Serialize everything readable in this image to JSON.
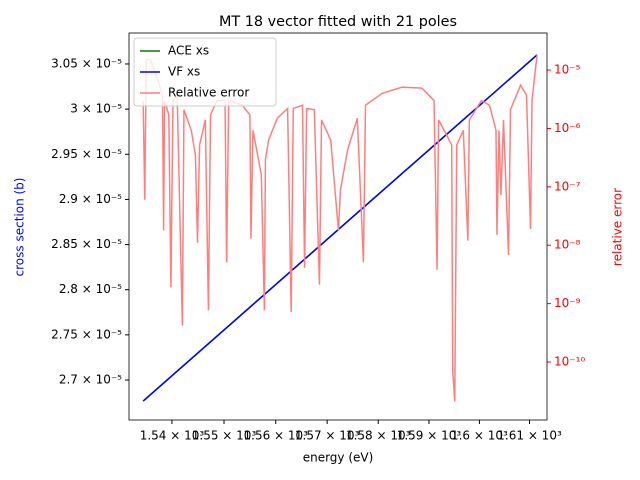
{
  "chart_data": {
    "type": "line",
    "title": "MT 18 vector fitted with 21 poles",
    "xlabel": "energy (eV)",
    "ylabel": "cross section (b)",
    "y2label": "relative error",
    "xscale": "log",
    "y2scale": "log",
    "legend": "upper left",
    "xlim": [
      1531.8,
      1613.5
    ],
    "ylim": [
      2.6557e-05,
      3.0843e-05
    ],
    "y2lim": [
      1.016e-11,
      4.31e-05
    ],
    "xticks": [
      {
        "value": 1540,
        "label": "1.54 × 10³"
      },
      {
        "value": 1550,
        "label": "1.55 × 10³"
      },
      {
        "value": 1560,
        "label": "1.56 × 10³"
      },
      {
        "value": 1570,
        "label": "1.57 × 10³"
      },
      {
        "value": 1580,
        "label": "1.58 × 10³"
      },
      {
        "value": 1590,
        "label": "1.59 × 10³"
      },
      {
        "value": 1600,
        "label": "1.6 × 10³"
      },
      {
        "value": 1610,
        "label": "1.61 × 10³"
      }
    ],
    "yticks": [
      {
        "value": 2.7e-05,
        "label": "2.7 × 10⁻⁵"
      },
      {
        "value": 2.75e-05,
        "label": "2.75 × 10⁻⁵"
      },
      {
        "value": 2.8e-05,
        "label": "2.8 × 10⁻⁵"
      },
      {
        "value": 2.85e-05,
        "label": "2.85 × 10⁻⁵"
      },
      {
        "value": 2.9e-05,
        "label": "2.9 × 10⁻⁵"
      },
      {
        "value": 2.95e-05,
        "label": "2.95 × 10⁻⁵"
      },
      {
        "value": 3e-05,
        "label": "3 × 10⁻⁵"
      },
      {
        "value": 3.05e-05,
        "label": "3.05 × 10⁻⁵"
      }
    ],
    "y2ticks": [
      {
        "value": 1e-10,
        "label": "10⁻¹⁰"
      },
      {
        "value": 1e-09,
        "label": "10⁻⁹"
      },
      {
        "value": 1e-08,
        "label": "10⁻⁸"
      },
      {
        "value": 1e-07,
        "label": "10⁻⁷"
      },
      {
        "value": 1e-06,
        "label": "10⁻⁶"
      },
      {
        "value": 1e-05,
        "label": "10⁻⁵"
      }
    ],
    "series": [
      {
        "name": "ACE xs",
        "color": "#008000",
        "x": [
          1534.5,
          1611.5
        ],
        "values": [
          2.6767e-05,
          3.06e-05
        ]
      },
      {
        "name": "VF xs",
        "color": "#0000ff",
        "x": [
          1534.5,
          1611.5
        ],
        "values": [
          2.6767e-05,
          3.06e-05
        ]
      },
      {
        "name": "Relative error",
        "color": "#ff7f7f",
        "axis": "y2",
        "x": [
          1534.5,
          1534.8,
          1535.1,
          1535.9,
          1537.3,
          1538.2,
          1538.4,
          1538.6,
          1539.4,
          1539.8,
          1540.2,
          1541.0,
          1542.0,
          1542.3,
          1543.7,
          1544.5,
          1544.9,
          1545.3,
          1546.4,
          1547.0,
          1547.4,
          1548.6,
          1550.2,
          1550.5,
          1550.9,
          1553.5,
          1555.0,
          1555.2,
          1555.6,
          1557.2,
          1557.8,
          1558.0,
          1558.6,
          1560.3,
          1562.3,
          1563.0,
          1563.4,
          1565.2,
          1565.6,
          1566.0,
          1567.5,
          1568.5,
          1568.9,
          1570.7,
          1572.2,
          1572.6,
          1574.0,
          1575.9,
          1577.1,
          1577.5,
          1580.8,
          1584.7,
          1588.6,
          1591.0,
          1591.6,
          1591.9,
          1593.5,
          1594.5,
          1594.7,
          1595.1,
          1595.5,
          1596.8,
          1597.7,
          1598.0,
          1600.4,
          1602.0,
          1603.3,
          1603.5,
          1603.9,
          1604.3,
          1604.8,
          1605.8,
          1606.2,
          1608.2,
          1609.4,
          1610.2,
          1610.5,
          1611.5
        ],
        "values": [
          3e-06,
          6e-08,
          1.5e-05,
          1.5e-05,
          6.7e-06,
          3.7e-06,
          1.8e-08,
          3e-06,
          1.7e-06,
          1.9e-09,
          3e-06,
          3.7e-06,
          4.2e-10,
          2.1e-06,
          9.3e-07,
          3.5e-07,
          1.1e-08,
          5.2e-07,
          1.4e-06,
          7.7e-10,
          1.7e-06,
          3e-06,
          3e-06,
          5.1e-09,
          3e-06,
          2.5e-06,
          1.7e-06,
          1.3e-08,
          9.3e-07,
          1.6e-07,
          7.7e-10,
          2.9e-07,
          6.3e-07,
          1.5e-06,
          2.2e-06,
          7.2e-10,
          2.2e-06,
          2.5e-06,
          4.1e-09,
          2.2e-06,
          2.1e-06,
          2.1e-09,
          1.4e-06,
          6.3e-07,
          1.8e-08,
          8.9e-08,
          4.3e-07,
          1.5e-06,
          5.1e-09,
          2.5e-06,
          4e-06,
          5.1e-06,
          4.9e-06,
          3e-06,
          3.8e-09,
          1.4e-06,
          7.7e-07,
          5.2e-07,
          7.2e-11,
          2.1e-11,
          5.2e-07,
          9.3e-07,
          1.2e-08,
          1.4e-06,
          3e-06,
          2.5e-06,
          9.3e-07,
          1.5e-08,
          9.3e-07,
          7.2e-08,
          1.4e-06,
          6.8e-09,
          2.1e-06,
          5.5e-06,
          3.7e-06,
          1.9e-08,
          3e-06,
          1.8e-05
        ]
      }
    ]
  }
}
